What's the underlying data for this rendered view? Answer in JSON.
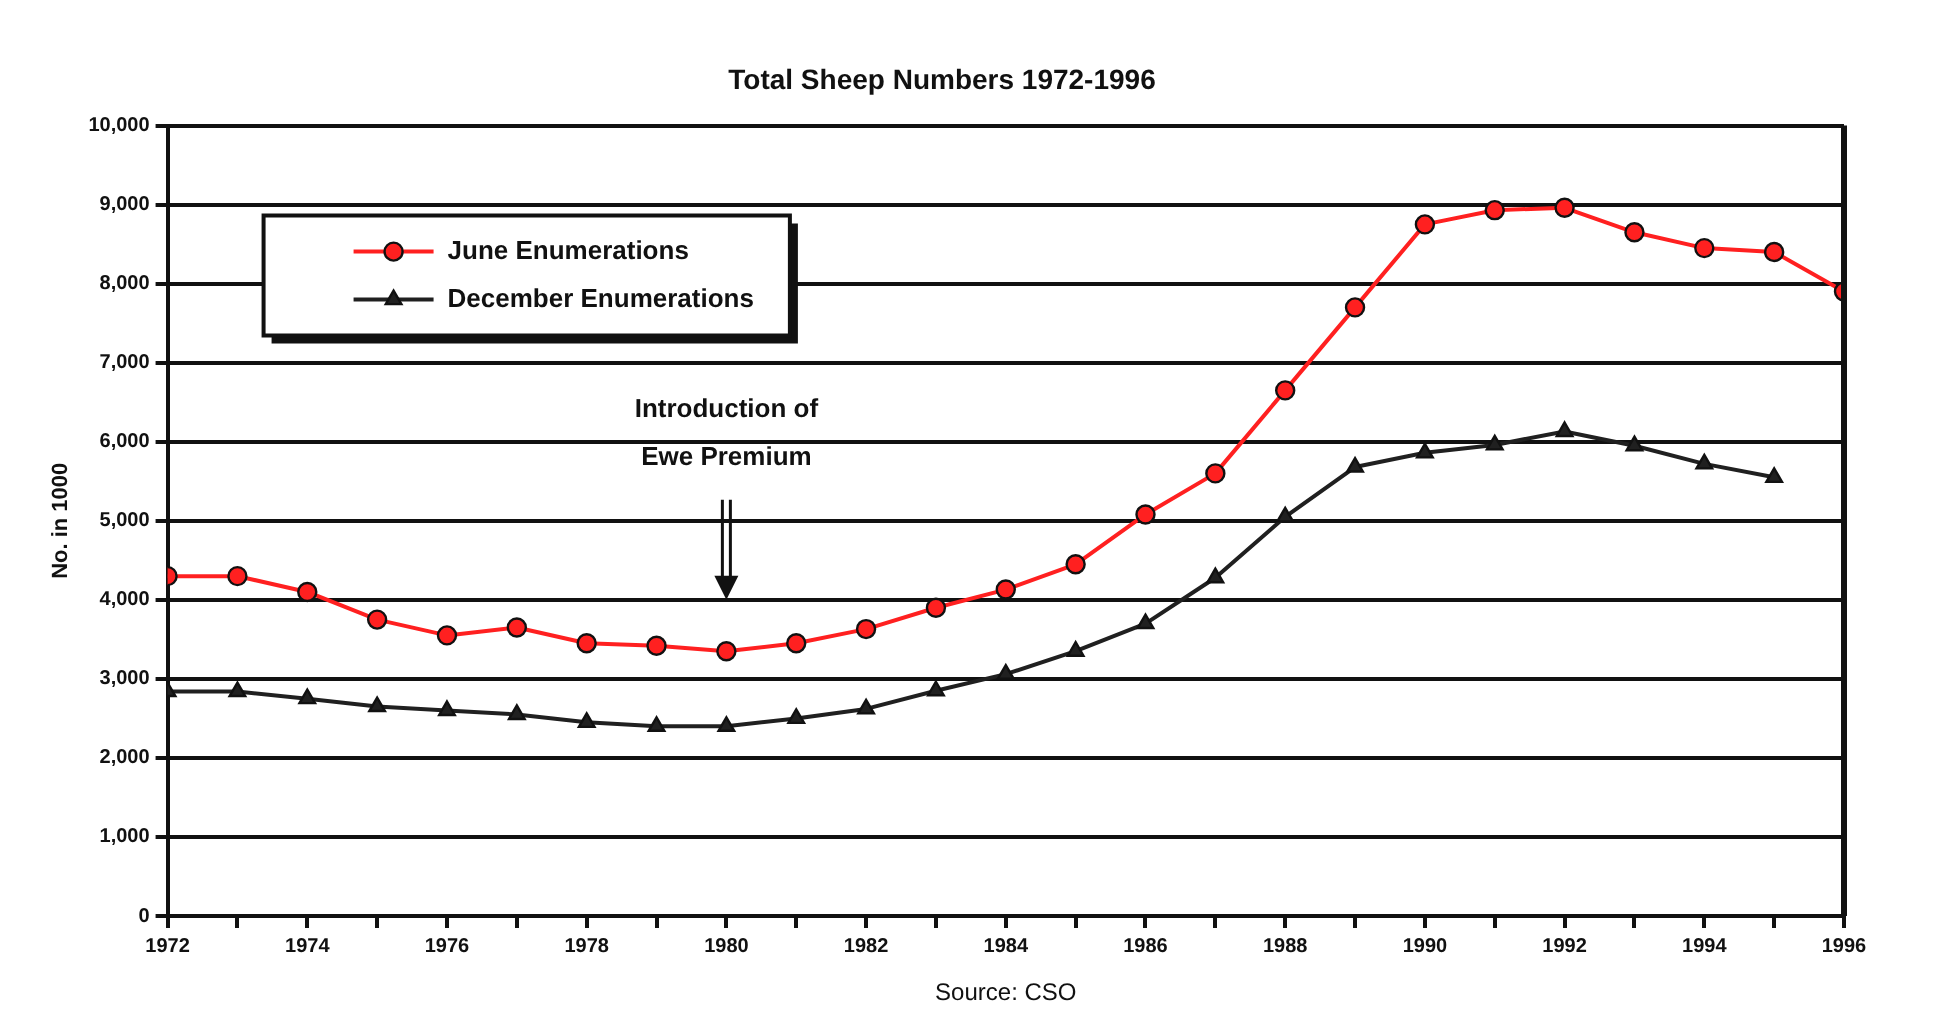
{
  "chart_data": {
    "type": "line",
    "title": "Total Sheep Numbers 1972-1996",
    "ylabel": "No. in 1000",
    "x": [
      1972,
      1973,
      1974,
      1975,
      1976,
      1977,
      1978,
      1979,
      1980,
      1981,
      1982,
      1983,
      1984,
      1985,
      1986,
      1987,
      1988,
      1989,
      1990,
      1991,
      1992,
      1993,
      1994,
      1995,
      1996
    ],
    "series": [
      {
        "name": "June Enumerations",
        "color": "#ff2020",
        "marker": "circle",
        "values": [
          4300,
          4300,
          4100,
          3750,
          3550,
          3650,
          3450,
          3420,
          3350,
          3450,
          3630,
          3900,
          4130,
          4450,
          5080,
          5600,
          6650,
          7700,
          8750,
          8930,
          8960,
          8650,
          8450,
          8400,
          7900
        ]
      },
      {
        "name": "December Enumerations",
        "color": "#202020",
        "marker": "triangle",
        "values": [
          2840,
          2840,
          2750,
          2650,
          2600,
          2550,
          2450,
          2400,
          2400,
          2500,
          2620,
          2850,
          3060,
          3350,
          3700,
          4280,
          5050,
          5680,
          5860,
          5960,
          6130,
          5950,
          5720,
          5550,
          null
        ]
      }
    ],
    "xlim": [
      1972,
      1996
    ],
    "xticks": [
      1972,
      {
        "value": 1973,
        "label": null
      },
      1974,
      {
        "value": 1975,
        "label": null
      },
      1976,
      {
        "value": 1977,
        "label": null
      },
      1978,
      {
        "value": 1979,
        "label": null
      },
      1980,
      {
        "value": 1981,
        "label": null
      },
      1982,
      {
        "value": 1983,
        "label": null
      },
      1984,
      {
        "value": 1985,
        "label": null
      },
      1986,
      {
        "value": 1987,
        "label": null
      },
      1988,
      {
        "value": 1989,
        "label": null
      },
      1990,
      {
        "value": 1991,
        "label": null
      },
      1992,
      {
        "value": 1993,
        "label": null
      },
      1994,
      {
        "value": 1995,
        "label": null
      },
      1996
    ],
    "ylim": [
      0,
      10000
    ],
    "yticks": [
      {
        "value": 0,
        "label": "0"
      },
      {
        "value": 1000,
        "label": "1,000"
      },
      {
        "value": 2000,
        "label": "2,000"
      },
      {
        "value": 3000,
        "label": "3,000"
      },
      {
        "value": 4000,
        "label": "4,000"
      },
      {
        "value": 5000,
        "label": "5,000"
      },
      {
        "value": 6000,
        "label": "6,000"
      },
      {
        "value": 7000,
        "label": "7,000"
      },
      {
        "value": 8000,
        "label": "8,000"
      },
      {
        "value": 9000,
        "label": "9,000"
      },
      {
        "value": 10000,
        "label": "10,000"
      }
    ],
    "grid": "y",
    "legend": "top left",
    "line_style": "solid",
    "annotations": [
      "Introduction of\nEwe Premium",
      "Source: CSO"
    ]
  }
}
